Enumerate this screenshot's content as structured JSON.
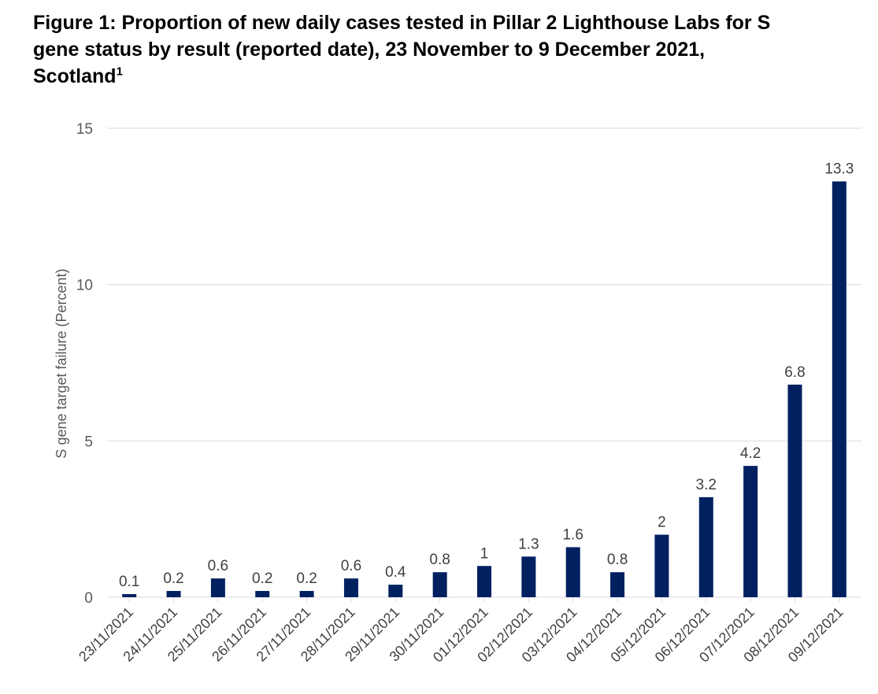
{
  "title": {
    "line1": "Figure 1: Proportion of new daily cases tested in Pillar 2 Lighthouse Labs for S",
    "line2": "gene status by result (reported date), 23 November to 9 December 2021,",
    "line3": "Scotland",
    "footnote_marker": "1"
  },
  "chart_data": {
    "type": "bar",
    "categories": [
      "23/11/2021",
      "24/11/2021",
      "25/11/2021",
      "26/11/2021",
      "27/11/2021",
      "28/11/2021",
      "29/11/2021",
      "30/11/2021",
      "01/12/2021",
      "02/12/2021",
      "03/12/2021",
      "04/12/2021",
      "05/12/2021",
      "06/12/2021",
      "07/12/2021",
      "08/12/2021",
      "09/12/2021"
    ],
    "values": [
      0.1,
      0.2,
      0.6,
      0.2,
      0.2,
      0.6,
      0.4,
      0.8,
      1,
      1.3,
      1.6,
      0.8,
      2,
      3.2,
      4.2,
      6.8,
      13.3
    ],
    "data_labels": [
      "0.1",
      "0.2",
      "0.6",
      "0.2",
      "0.2",
      "0.6",
      "0.4",
      "0.8",
      "1",
      "1.3",
      "1.6",
      "0.8",
      "2",
      "3.2",
      "4.2",
      "6.8",
      "13.3"
    ],
    "ylabel": "S gene target failure (Percent)",
    "xlabel": "",
    "ylim": [
      0,
      15
    ],
    "yticks": [
      0,
      5,
      10,
      15
    ],
    "grid": true,
    "bar_color": "#002060",
    "grid_color": "#d9d9d9"
  }
}
